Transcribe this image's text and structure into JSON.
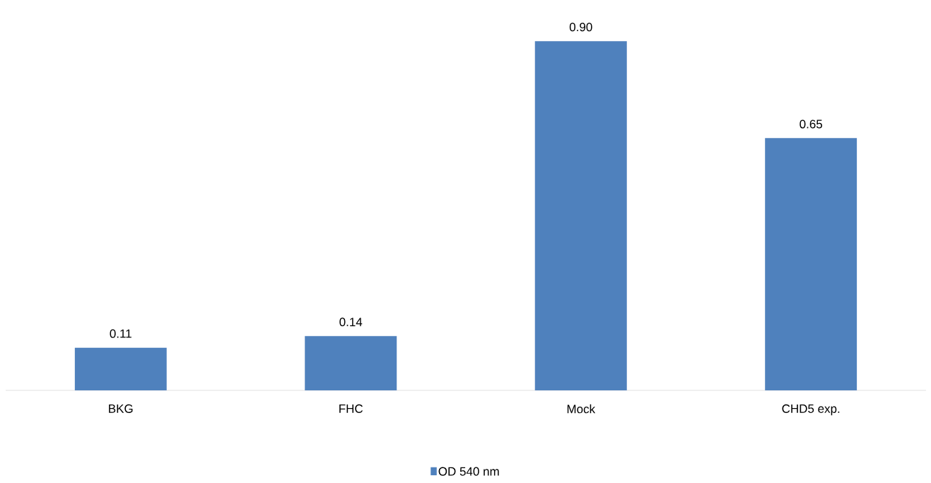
{
  "chart_data": {
    "type": "bar",
    "categories": [
      "BKG",
      "FHC",
      "Mock",
      "CHD5 exp."
    ],
    "series": [
      {
        "name": "OD 540 nm",
        "color": "#4f81bd",
        "values": [
          0.11,
          0.14,
          0.9,
          0.65
        ],
        "value_labels": [
          "0.11",
          "0.14",
          "0.90",
          "0.65"
        ]
      }
    ],
    "legend": "bottom"
  }
}
